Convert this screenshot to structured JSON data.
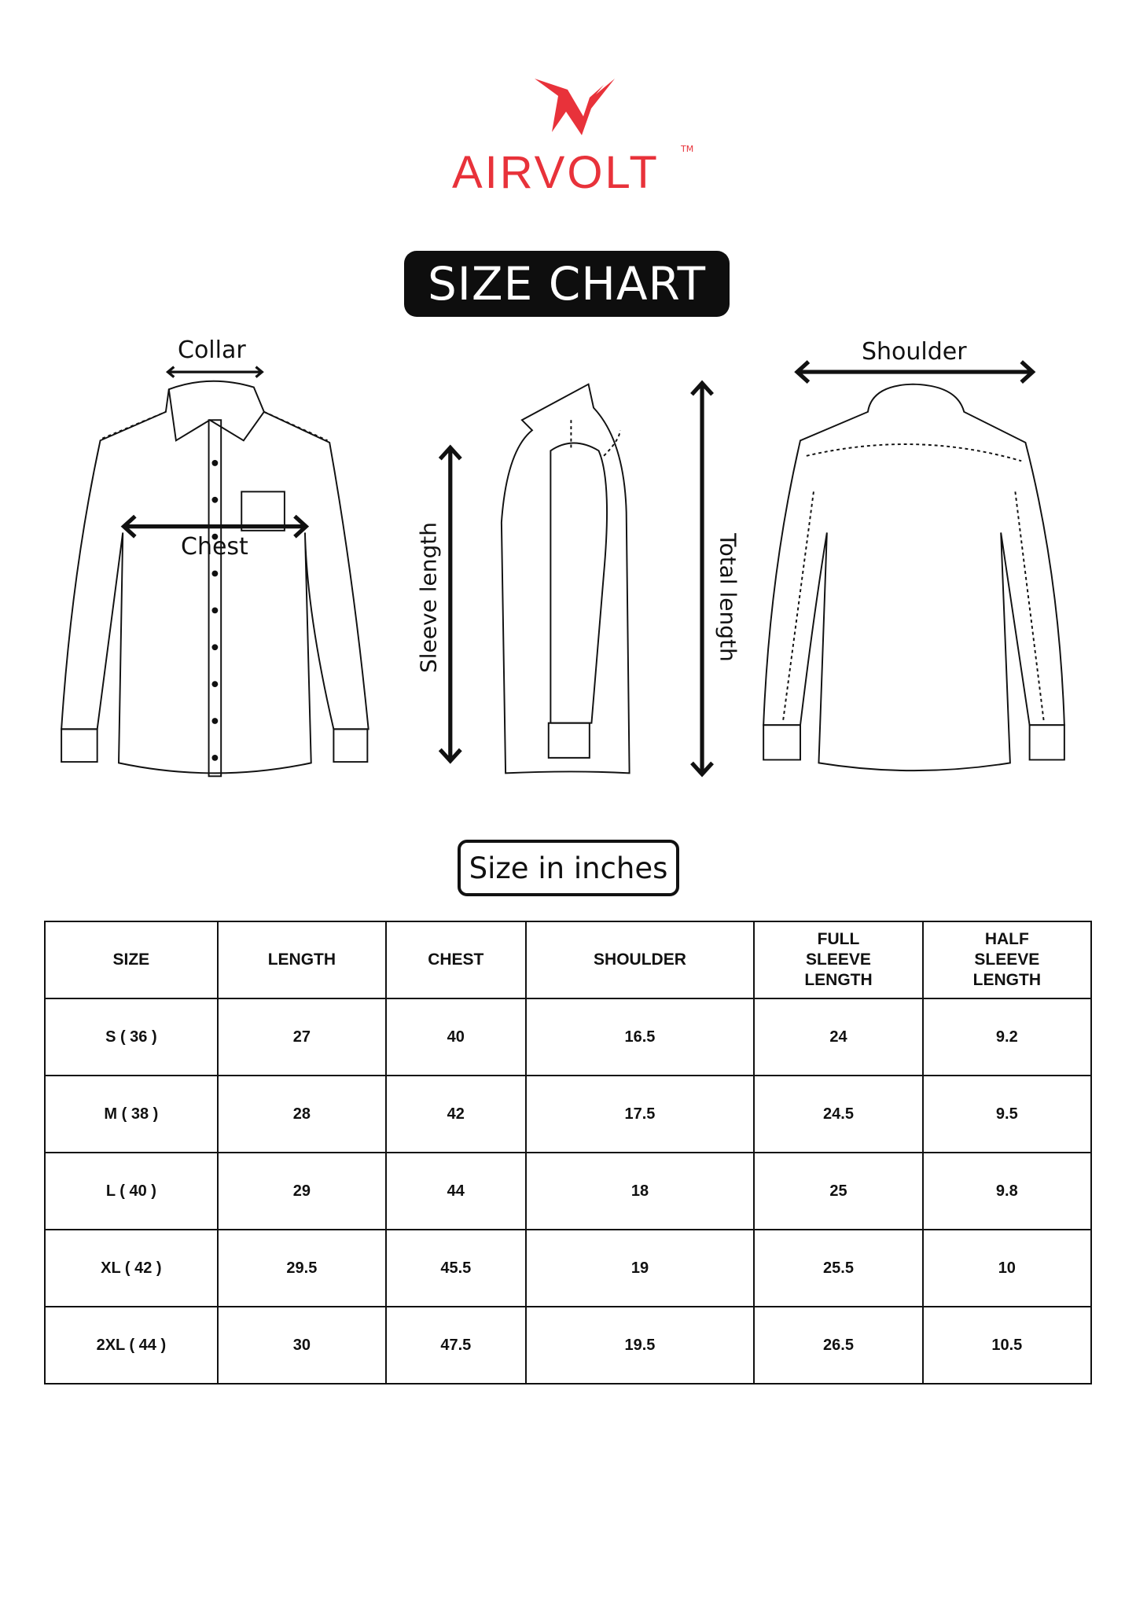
{
  "brand": {
    "name": "AIRVOLT",
    "trademark": "TM",
    "color": "#e8323a"
  },
  "title": "SIZE CHART",
  "illustration_labels": {
    "collar": "Collar",
    "chest": "Chest",
    "sleeve_length": "Sleeve length",
    "total_length": "Total length",
    "shoulder": "Shoulder"
  },
  "units_label": "Size in inches",
  "table": {
    "headers": [
      [
        "SIZE"
      ],
      [
        "LENGTH"
      ],
      [
        "CHEST"
      ],
      [
        "SHOULDER"
      ],
      [
        "FULL",
        "SLEEVE",
        "LENGTH"
      ],
      [
        "HALF",
        "SLEEVE",
        "LENGTH"
      ]
    ],
    "rows": [
      [
        "S ( 36 )",
        "27",
        "40",
        "16.5",
        "24",
        "9.2"
      ],
      [
        "M ( 38 )",
        "28",
        "42",
        "17.5",
        "24.5",
        "9.5"
      ],
      [
        "L ( 40 )",
        "29",
        "44",
        "18",
        "25",
        "9.8"
      ],
      [
        "XL ( 42 )",
        "29.5",
        "45.5",
        "19",
        "25.5",
        "10"
      ],
      [
        "2XL ( 44 )",
        "30",
        "47.5",
        "19.5",
        "26.5",
        "10.5"
      ]
    ]
  }
}
